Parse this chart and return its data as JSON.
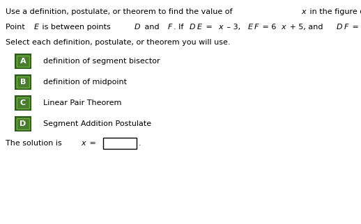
{
  "bg_color": "#ffffff",
  "options": [
    {
      "label": "A",
      "text": "definition of segment bisector"
    },
    {
      "label": "B",
      "text": "definition of midpoint"
    },
    {
      "label": "C",
      "text": "Linear Pair Theorem"
    },
    {
      "label": "D",
      "text": "Segment Addition Postulate"
    }
  ],
  "button_color": "#4a7c2f",
  "button_border_color": "#2d5a1b",
  "button_highlight_color": "#6aab3f",
  "button_text_color": "#ffffff"
}
